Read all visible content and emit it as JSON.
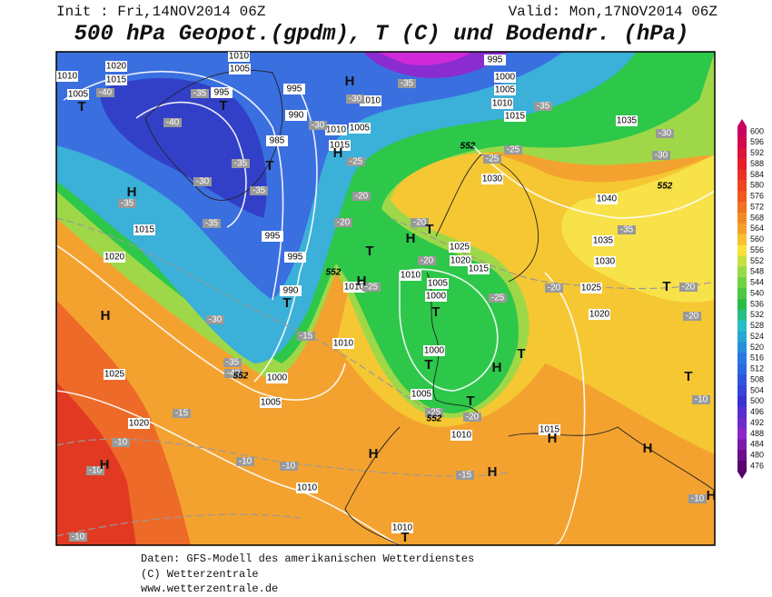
{
  "header": {
    "init": "Init : Fri,14NOV2014 06Z",
    "valid": "Valid: Mon,17NOV2014 06Z",
    "title": "500 hPa Geopot.(gpdm), T (C) und Bodendr. (hPa)"
  },
  "colorbar": {
    "ticks": [
      600,
      596,
      592,
      588,
      584,
      580,
      576,
      572,
      568,
      564,
      560,
      556,
      552,
      548,
      544,
      540,
      536,
      532,
      528,
      524,
      520,
      516,
      512,
      508,
      504,
      500,
      496,
      492,
      488,
      484,
      480,
      476
    ]
  },
  "map": {
    "pressure_labels": [
      1020,
      1010,
      1015,
      1005,
      1010,
      1005,
      995,
      995,
      990,
      985,
      1010,
      1005,
      1015,
      1010,
      995,
      1000,
      1005,
      1010,
      1015,
      1035,
      1030,
      1040,
      1015,
      1020,
      995,
      995,
      990,
      1010,
      1010,
      1005,
      1000,
      1025,
      1020,
      1015,
      1035,
      1030,
      1025,
      1020,
      1010,
      1000,
      1005,
      1025,
      1020,
      1000,
      1005,
      1010,
      1015,
      1010,
      1010
    ],
    "temperature_labels": [
      -40,
      -35,
      -40,
      -35,
      -35,
      -30,
      -35,
      -35,
      -30,
      -35,
      -30,
      -25,
      -20,
      -20,
      -25,
      -25,
      -35,
      -30,
      -30,
      -35,
      -20,
      -20,
      -25,
      -25,
      -20,
      -20,
      -20,
      -30,
      -15,
      -35,
      -40,
      -25,
      -20,
      -15,
      -10,
      -10,
      -10,
      -10,
      -15,
      -10,
      -10,
      -10
    ],
    "height_labels": [
      552,
      552,
      552,
      552,
      552
    ],
    "centers": [
      "H",
      "T",
      "H",
      "T",
      "H",
      "T",
      "H",
      "T",
      "H",
      "T",
      "H",
      "T",
      "T",
      "T",
      "H",
      "T",
      "T",
      "H",
      "H",
      "H",
      "H",
      "H",
      "T",
      "T",
      "T",
      "H"
    ]
  },
  "footer": [
    "Daten: GFS-Modell des amerikanischen Wetterdienstes",
    "(C) Wetterzentrale",
    "www.wetterzentrale.de"
  ]
}
